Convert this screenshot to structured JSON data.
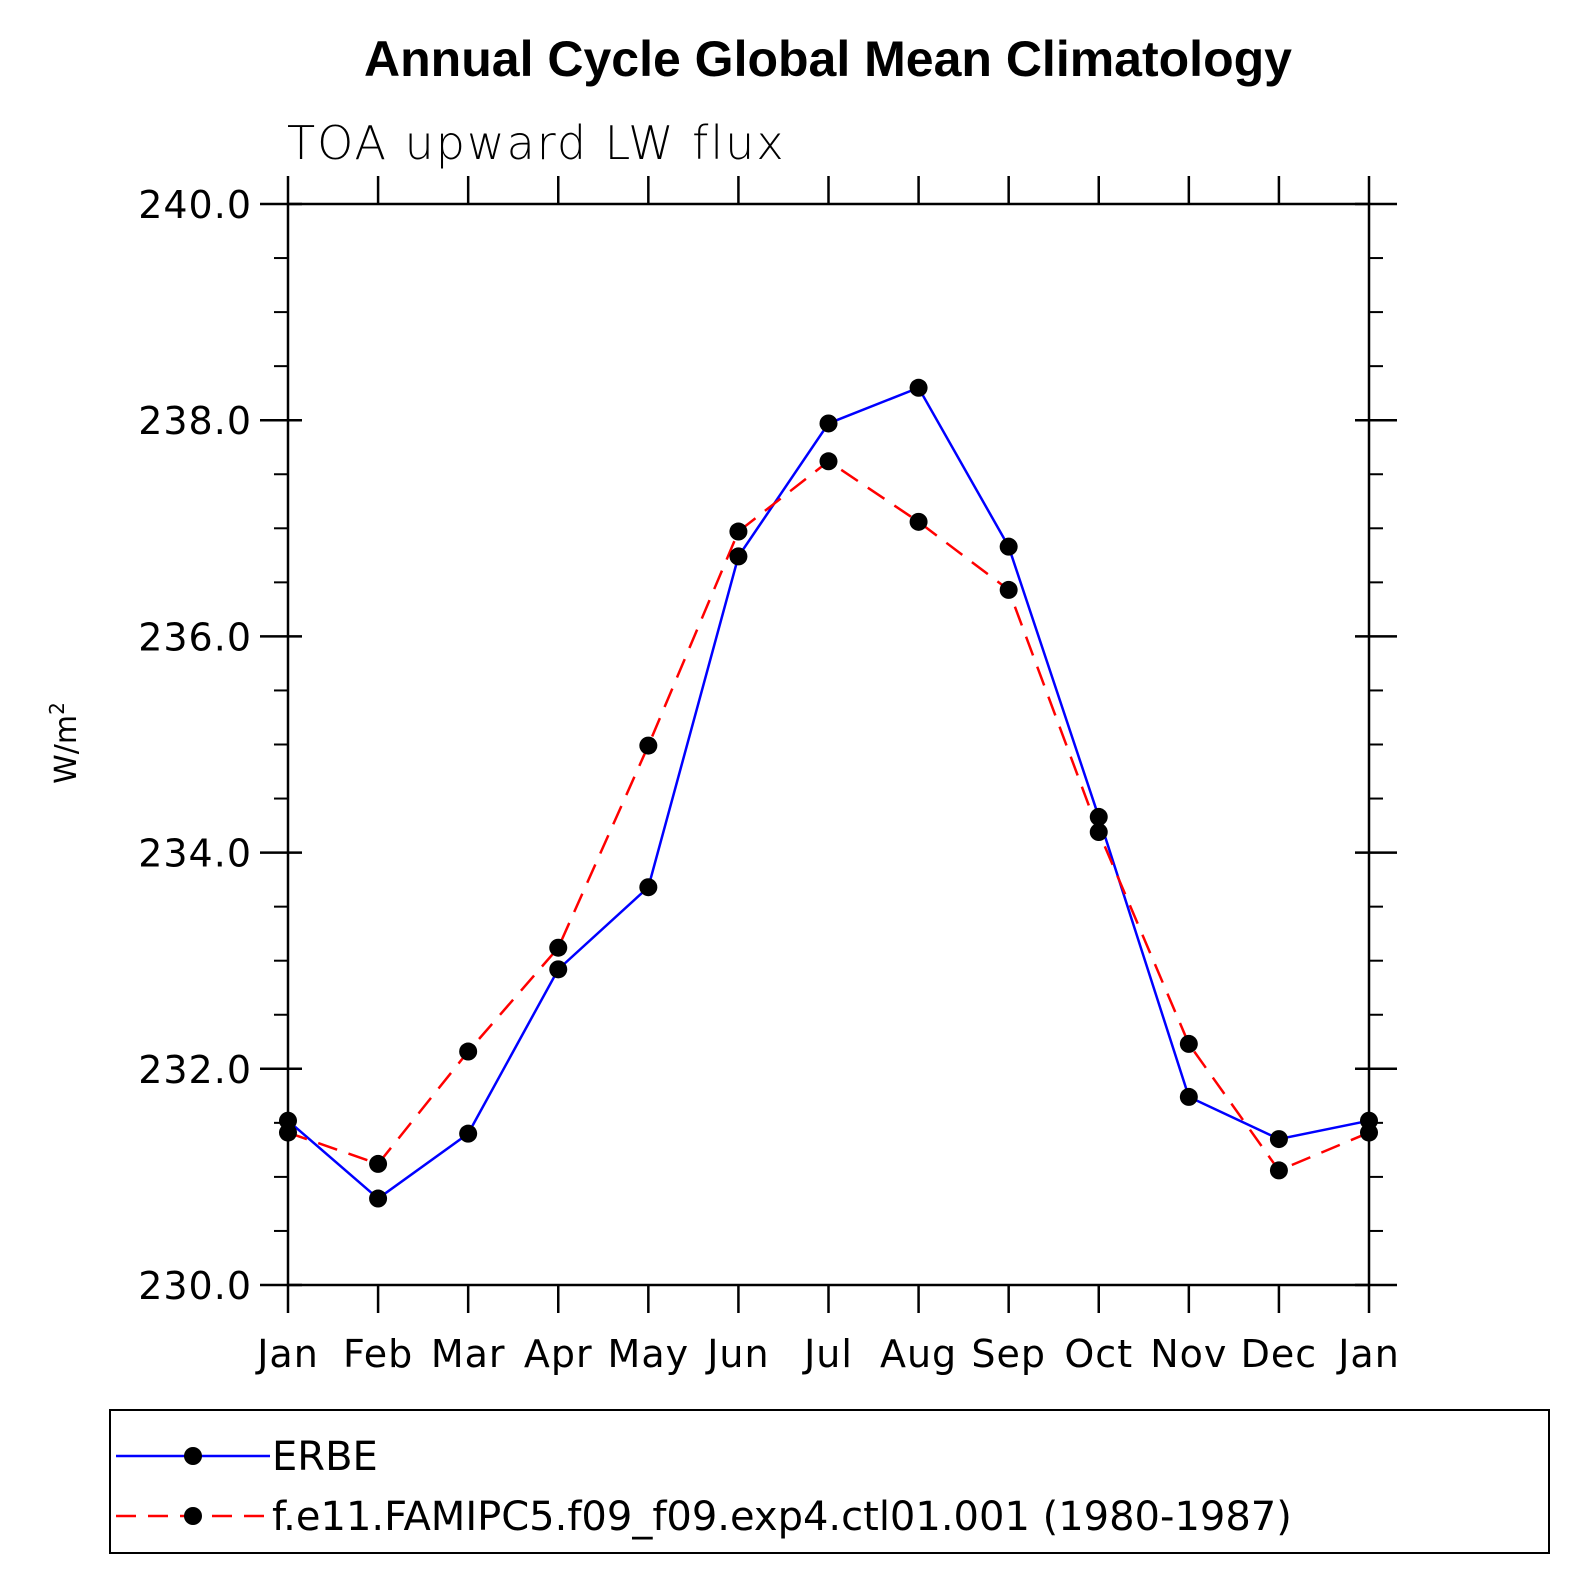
{
  "chart_data": {
    "type": "line",
    "title": "Annual Cycle Global Mean Climatology",
    "subtitle": "TOA upward LW flux",
    "ylabel_base": "W/m",
    "ylabel_sup": "2",
    "xlabel": "",
    "categories": [
      "Jan",
      "Feb",
      "Mar",
      "Apr",
      "May",
      "Jun",
      "Jul",
      "Aug",
      "Sep",
      "Oct",
      "Nov",
      "Dec",
      "Jan"
    ],
    "ylim": [
      230.0,
      240.0
    ],
    "yticks": [
      "230.0",
      "232.0",
      "234.0",
      "236.0",
      "238.0",
      "240.0"
    ],
    "grid": false,
    "legend_position": "bottom",
    "series": [
      {
        "name": "ERBE",
        "color": "#0000ff",
        "dash": "solid",
        "marker": "filled-circle",
        "values": [
          231.52,
          230.8,
          231.4,
          232.92,
          233.68,
          236.74,
          237.97,
          238.3,
          236.83,
          234.33,
          231.74,
          231.35,
          231.52
        ]
      },
      {
        "name": "f.e11.FAMIPC5.f09_f09.exp4.ctl01.001 (1980-1987)",
        "color": "#ff0000",
        "dash": "dashed",
        "marker": "filled-circle",
        "values": [
          231.41,
          231.12,
          232.16,
          233.12,
          234.99,
          236.97,
          237.62,
          237.06,
          236.43,
          234.19,
          232.23,
          231.06,
          231.41
        ]
      }
    ]
  }
}
